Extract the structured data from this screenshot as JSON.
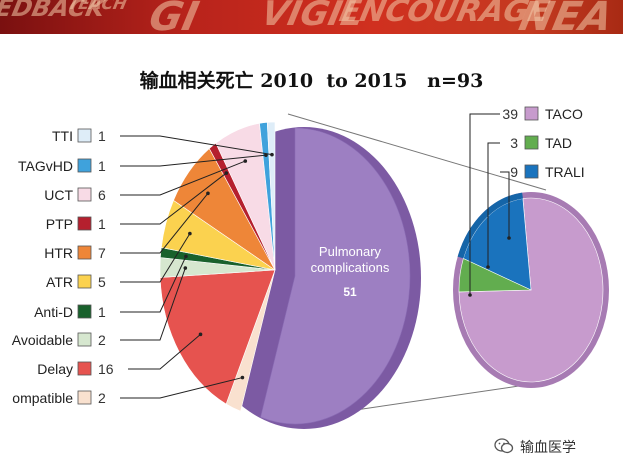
{
  "banner": {
    "words": [
      "EDBACK",
      "TEACH",
      "GI",
      "VIGIL",
      "ENCOURAGE",
      "NEA"
    ]
  },
  "title": "输血相关死亡 2010  to 2015   n=93",
  "watermark": "输血医学",
  "colors": {
    "TTI": "#deedf8",
    "TAGvHD": "#3fa2dc",
    "UCT": "#f8dbe6",
    "PTP": "#b5202e",
    "HTR": "#ee8638",
    "ATR": "#fbd24f",
    "Anti-D": "#19612c",
    "Avoidable": "#d6e7cf",
    "Delay": "#e6534f",
    "Incompatible": "#f9e1cf",
    "Pulmonary": "#9d7fc2",
    "TACO": "#c79bcd",
    "TAD": "#62ad4f",
    "TRALI": "#1a73bd"
  },
  "chart_data": [
    {
      "type": "pie",
      "title": "输血相关死亡 2010  to 2015   n=93",
      "slices": [
        {
          "label": "TTI",
          "value": 1
        },
        {
          "label": "TAGvHD",
          "value": 1
        },
        {
          "label": "UCT",
          "value": 6
        },
        {
          "label": "PTP",
          "value": 1
        },
        {
          "label": "HTR",
          "value": 7
        },
        {
          "label": "ATR",
          "value": 5
        },
        {
          "label": "Anti-D",
          "value": 1
        },
        {
          "label": "Avoidable",
          "value": 2
        },
        {
          "label": "Delay",
          "value": 16
        },
        {
          "label": "ompatible",
          "value": 2
        },
        {
          "label": "Pulmonary complications",
          "value": 51
        }
      ],
      "exploded_label": "Pulmonary\ncomplications",
      "exploded_value": "51"
    },
    {
      "type": "pie",
      "slices": [
        {
          "label": "TACO",
          "value": 39
        },
        {
          "label": "TAD",
          "value": 3
        },
        {
          "label": "TRALI",
          "value": 9
        }
      ]
    }
  ]
}
